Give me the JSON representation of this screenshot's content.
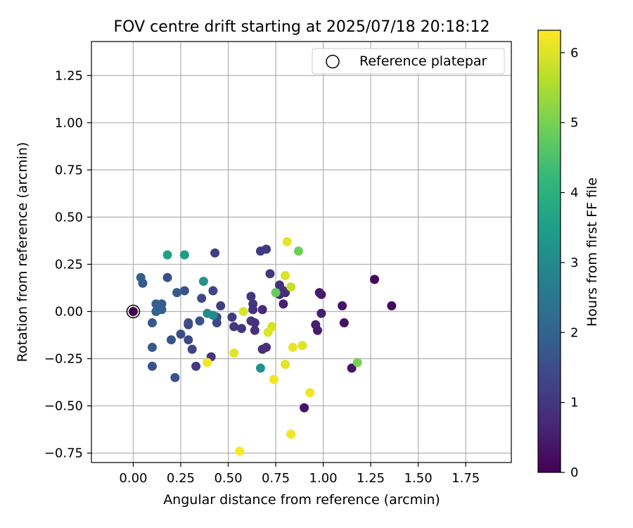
{
  "chart_data": {
    "type": "scatter",
    "title": "FOV centre drift starting at 2025/07/18 20:18:12",
    "xlabel": "Angular distance from reference (arcmin)",
    "ylabel": "Rotation from reference (arcmin)",
    "xlim": [
      -0.22,
      1.99
    ],
    "ylim": [
      -0.8,
      1.43
    ],
    "xticks": [
      0.0,
      0.25,
      0.5,
      0.75,
      1.0,
      1.25,
      1.5,
      1.75
    ],
    "xtick_labels": [
      "0.00",
      "0.25",
      "0.50",
      "0.75",
      "1.00",
      "1.25",
      "1.50",
      "1.75"
    ],
    "yticks": [
      -0.75,
      -0.5,
      -0.25,
      0.0,
      0.25,
      0.5,
      0.75,
      1.0,
      1.25
    ],
    "ytick_labels": [
      "−0.75",
      "−0.50",
      "−0.25",
      "0.00",
      "0.25",
      "0.50",
      "0.75",
      "1.00",
      "1.25"
    ],
    "grid": true,
    "legend": {
      "position": "top-right",
      "label": "Reference platepar"
    },
    "colorbar": {
      "label": "Hours from first FF file",
      "range": [
        0,
        6.32
      ],
      "ticks": [
        0,
        1,
        2,
        3,
        4,
        5,
        6
      ],
      "tick_labels": [
        "0",
        "1",
        "2",
        "3",
        "4",
        "5",
        "6"
      ],
      "colormap": "viridis"
    },
    "reference_point": {
      "x": 0.0,
      "y": 0.0
    },
    "colormap_stops": [
      "#440154",
      "#482878",
      "#3e4989",
      "#31688e",
      "#26828e",
      "#1f9e89",
      "#35b779",
      "#6ece58",
      "#b5de2b",
      "#fde725"
    ],
    "points": [
      {
        "x": 0.0,
        "y": 0.0,
        "c": 0.0
      },
      {
        "x": 1.27,
        "y": 0.17,
        "c": 0.15
      },
      {
        "x": 1.36,
        "y": 0.03,
        "c": 0.2
      },
      {
        "x": 1.1,
        "y": 0.03,
        "c": 0.3
      },
      {
        "x": 1.11,
        "y": -0.06,
        "c": 0.3
      },
      {
        "x": 0.98,
        "y": 0.1,
        "c": 0.45
      },
      {
        "x": 0.99,
        "y": 0.09,
        "c": 0.45
      },
      {
        "x": 0.99,
        "y": -0.01,
        "c": 0.5
      },
      {
        "x": 0.96,
        "y": -0.07,
        "c": 0.55
      },
      {
        "x": 0.97,
        "y": -0.1,
        "c": 0.5
      },
      {
        "x": 1.15,
        "y": -0.3,
        "c": 0.4
      },
      {
        "x": 0.9,
        "y": -0.51,
        "c": 0.35
      },
      {
        "x": 0.79,
        "y": 0.04,
        "c": 0.6
      },
      {
        "x": 0.8,
        "y": 0.1,
        "c": 0.7
      },
      {
        "x": 0.79,
        "y": 0.11,
        "c": 0.8
      },
      {
        "x": 0.77,
        "y": 0.14,
        "c": 0.9
      },
      {
        "x": 0.77,
        "y": 0.09,
        "c": 0.85
      },
      {
        "x": 0.72,
        "y": 0.2,
        "c": 1.0
      },
      {
        "x": 0.7,
        "y": 0.33,
        "c": 1.05
      },
      {
        "x": 0.67,
        "y": 0.32,
        "c": 1.1
      },
      {
        "x": 0.68,
        "y": 0.01,
        "c": 0.75
      },
      {
        "x": 0.62,
        "y": 0.08,
        "c": 1.0
      },
      {
        "x": 0.63,
        "y": 0.04,
        "c": 1.0
      },
      {
        "x": 0.63,
        "y": 0.01,
        "c": 0.9
      },
      {
        "x": 0.62,
        "y": -0.05,
        "c": 1.0
      },
      {
        "x": 0.64,
        "y": -0.06,
        "c": 0.95
      },
      {
        "x": 0.64,
        "y": -0.1,
        "c": 0.9
      },
      {
        "x": 0.57,
        "y": -0.09,
        "c": 1.0
      },
      {
        "x": 0.53,
        "y": -0.08,
        "c": 1.05
      },
      {
        "x": 0.52,
        "y": -0.03,
        "c": 1.1
      },
      {
        "x": 0.68,
        "y": -0.2,
        "c": 0.8
      },
      {
        "x": 0.7,
        "y": -0.19,
        "c": 0.85
      },
      {
        "x": 0.43,
        "y": 0.31,
        "c": 1.2
      },
      {
        "x": 0.42,
        "y": 0.11,
        "c": 1.3
      },
      {
        "x": 0.36,
        "y": 0.07,
        "c": 1.4
      },
      {
        "x": 0.46,
        "y": 0.03,
        "c": 1.2
      },
      {
        "x": 0.44,
        "y": -0.03,
        "c": 1.5
      },
      {
        "x": 0.44,
        "y": -0.06,
        "c": 1.4
      },
      {
        "x": 0.41,
        "y": -0.24,
        "c": 1.0
      },
      {
        "x": 0.33,
        "y": -0.29,
        "c": 1.1
      },
      {
        "x": 0.35,
        "y": -0.05,
        "c": 1.6
      },
      {
        "x": 0.27,
        "y": 0.11,
        "c": 1.6
      },
      {
        "x": 0.23,
        "y": 0.1,
        "c": 1.8
      },
      {
        "x": 0.18,
        "y": 0.18,
        "c": 1.5
      },
      {
        "x": 0.29,
        "y": -0.06,
        "c": 1.6
      },
      {
        "x": 0.29,
        "y": -0.07,
        "c": 1.5
      },
      {
        "x": 0.29,
        "y": -0.15,
        "c": 1.4
      },
      {
        "x": 0.31,
        "y": -0.2,
        "c": 1.3
      },
      {
        "x": 0.25,
        "y": -0.12,
        "c": 1.5
      },
      {
        "x": 0.2,
        "y": -0.15,
        "c": 1.6
      },
      {
        "x": 0.22,
        "y": -0.35,
        "c": 1.7
      },
      {
        "x": 0.04,
        "y": 0.18,
        "c": 1.9
      },
      {
        "x": 0.05,
        "y": 0.15,
        "c": 1.8
      },
      {
        "x": 0.15,
        "y": 0.04,
        "c": 1.8
      },
      {
        "x": 0.12,
        "y": 0.04,
        "c": 1.9
      },
      {
        "x": 0.12,
        "y": 0.0,
        "c": 2.0
      },
      {
        "x": 0.15,
        "y": 0.01,
        "c": 1.9
      },
      {
        "x": 0.1,
        "y": -0.06,
        "c": 1.8
      },
      {
        "x": 0.1,
        "y": -0.19,
        "c": 1.8
      },
      {
        "x": 0.1,
        "y": -0.29,
        "c": 1.6
      },
      {
        "x": 0.18,
        "y": 0.3,
        "c": 3.6
      },
      {
        "x": 0.27,
        "y": 0.3,
        "c": 3.4
      },
      {
        "x": 0.37,
        "y": 0.16,
        "c": 3.2
      },
      {
        "x": 0.39,
        "y": -0.01,
        "c": 3.0
      },
      {
        "x": 0.42,
        "y": -0.02,
        "c": 3.0
      },
      {
        "x": 0.67,
        "y": -0.3,
        "c": 3.2
      },
      {
        "x": 0.75,
        "y": 0.1,
        "c": 4.8
      },
      {
        "x": 0.87,
        "y": 0.32,
        "c": 4.9
      },
      {
        "x": 1.18,
        "y": -0.27,
        "c": 5.0
      },
      {
        "x": 0.81,
        "y": 0.37,
        "c": 6.1
      },
      {
        "x": 0.8,
        "y": 0.19,
        "c": 6.0
      },
      {
        "x": 0.83,
        "y": 0.13,
        "c": 5.8
      },
      {
        "x": 0.58,
        "y": 0.0,
        "c": 6.0
      },
      {
        "x": 0.73,
        "y": -0.08,
        "c": 5.9
      },
      {
        "x": 0.71,
        "y": -0.11,
        "c": 6.0
      },
      {
        "x": 0.84,
        "y": -0.19,
        "c": 6.1
      },
      {
        "x": 0.89,
        "y": -0.18,
        "c": 6.0
      },
      {
        "x": 0.8,
        "y": -0.28,
        "c": 6.1
      },
      {
        "x": 0.53,
        "y": -0.22,
        "c": 6.1
      },
      {
        "x": 0.39,
        "y": -0.27,
        "c": 6.2
      },
      {
        "x": 0.74,
        "y": -0.36,
        "c": 6.2
      },
      {
        "x": 0.93,
        "y": -0.43,
        "c": 6.2
      },
      {
        "x": 0.83,
        "y": -0.65,
        "c": 6.2
      },
      {
        "x": 0.56,
        "y": -0.74,
        "c": 6.3
      }
    ]
  }
}
